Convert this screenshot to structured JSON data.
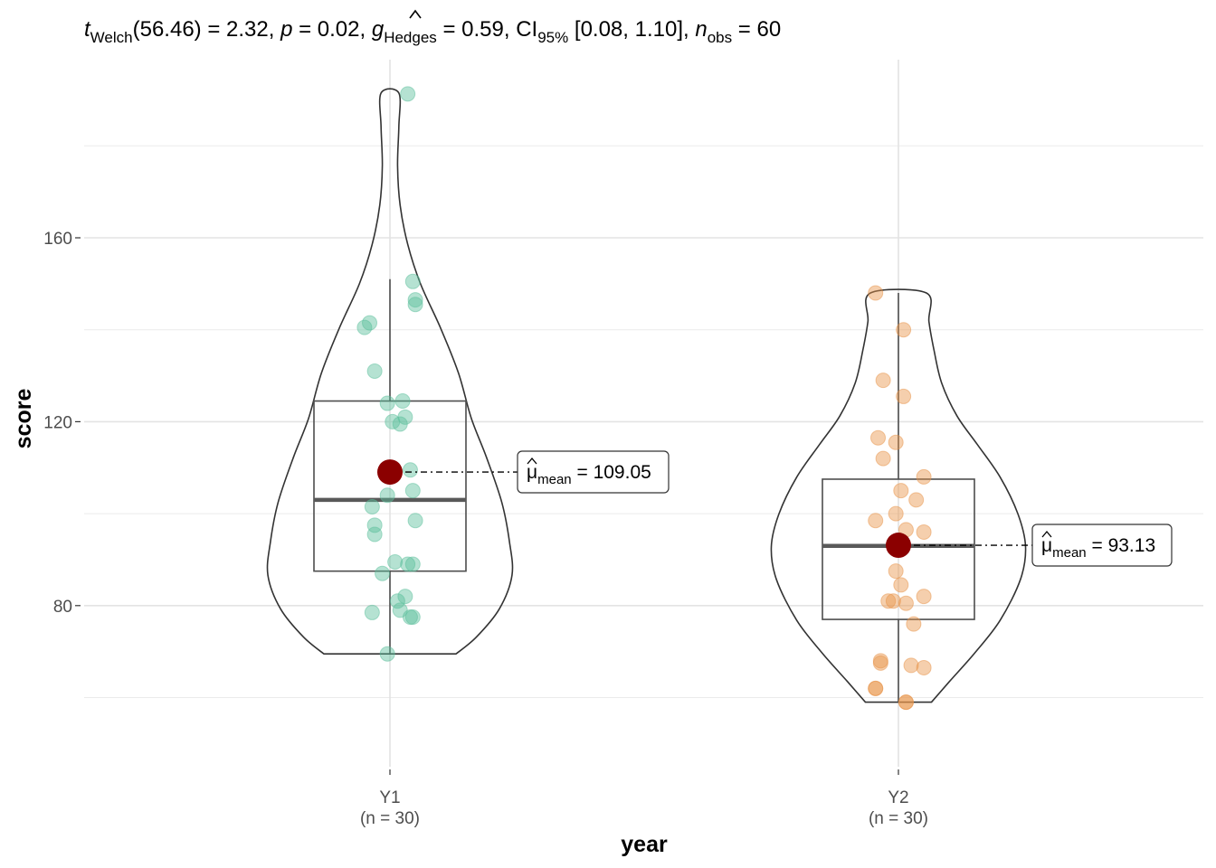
{
  "chart_data": {
    "type": "violin-box-scatter",
    "title": "",
    "subtitle_parts": {
      "t": "t",
      "t_sub": "Welch",
      "df": "(56.46)",
      "eq1": " = 2.32, ",
      "p": "p",
      "p_val": " = 0.02, ",
      "g": "g",
      "g_sub": "Hedges",
      "g_val": " = 0.59, CI",
      "ci_sub": "95%",
      "ci_val": " [0.08, 1.10], ",
      "n": "n",
      "n_sub": "obs",
      "n_val": " = 60"
    },
    "xlabel": "year",
    "ylabel": "score",
    "ylim": [
      50,
      193
    ],
    "yticks": [
      80,
      120,
      160
    ],
    "grid": true,
    "groups": [
      {
        "name": "Y1",
        "n_label": "(n = 30)",
        "color": "#5BBF9C",
        "mean": 109.05,
        "mean_label_mu": "μ",
        "mean_label_sub": "mean",
        "mean_label_val": " = 109.05",
        "box": {
          "q1": 87.5,
          "median": 103,
          "q3": 124.5,
          "whisker_low": 69.5,
          "whisker_high": 151
        },
        "violin": {
          "min": 69.5,
          "max": 191.5
        },
        "points": [
          [
            0.07,
            191.3
          ],
          [
            0.09,
            150.5
          ],
          [
            0.1,
            146.5
          ],
          [
            0.1,
            145.5
          ],
          [
            -0.08,
            141.5
          ],
          [
            -0.1,
            140.5
          ],
          [
            -0.06,
            131
          ],
          [
            0.05,
            124.5
          ],
          [
            -0.01,
            124
          ],
          [
            0.06,
            121
          ],
          [
            0.01,
            120
          ],
          [
            0.04,
            119.5
          ],
          [
            0.08,
            109.5
          ],
          [
            0.09,
            105
          ],
          [
            -0.01,
            104
          ],
          [
            -0.07,
            101.5
          ],
          [
            -0.06,
            97.5
          ],
          [
            0.1,
            98.5
          ],
          [
            -0.06,
            95.5
          ],
          [
            0.02,
            89.5
          ],
          [
            0.07,
            89
          ],
          [
            0.09,
            89
          ],
          [
            -0.03,
            87
          ],
          [
            0.06,
            82
          ],
          [
            0.03,
            81
          ],
          [
            0.04,
            79
          ],
          [
            0.09,
            77.5
          ],
          [
            0.08,
            77.5
          ],
          [
            -0.07,
            78.5
          ],
          [
            -0.01,
            69.5
          ]
        ]
      },
      {
        "name": "Y2",
        "n_label": "(n = 30)",
        "color": "#E8944A",
        "mean": 93.13,
        "mean_label_mu": "μ",
        "mean_label_sub": "mean",
        "mean_label_val": " = 93.13",
        "box": {
          "q1": 77,
          "median": 93,
          "q3": 107.5,
          "whisker_low": 59,
          "whisker_high": 148
        },
        "violin": {
          "min": 59,
          "max": 148
        },
        "points": [
          [
            -0.09,
            148
          ],
          [
            0.02,
            140
          ],
          [
            -0.06,
            129
          ],
          [
            0.02,
            125.5
          ],
          [
            -0.08,
            116.5
          ],
          [
            -0.01,
            115.5
          ],
          [
            -0.06,
            112
          ],
          [
            0.1,
            108
          ],
          [
            0.01,
            105
          ],
          [
            0.07,
            103
          ],
          [
            -0.01,
            100
          ],
          [
            -0.09,
            98.5
          ],
          [
            0.03,
            96.5
          ],
          [
            0.1,
            96
          ],
          [
            0.0,
            93
          ],
          [
            -0.01,
            87.5
          ],
          [
            0.01,
            84.5
          ],
          [
            0.1,
            82
          ],
          [
            -0.04,
            81
          ],
          [
            -0.02,
            81
          ],
          [
            0.03,
            80.5
          ],
          [
            0.06,
            76
          ],
          [
            -0.07,
            68
          ],
          [
            -0.07,
            67.5
          ],
          [
            0.05,
            67
          ],
          [
            0.1,
            66.5
          ],
          [
            -0.09,
            62
          ],
          [
            -0.09,
            62
          ],
          [
            0.03,
            59
          ],
          [
            0.03,
            59
          ]
        ]
      }
    ]
  }
}
